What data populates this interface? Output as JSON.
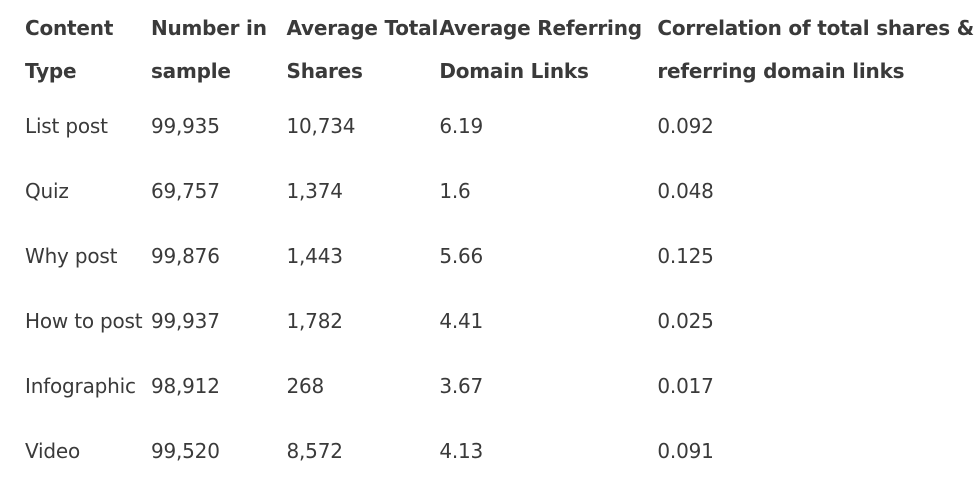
{
  "table": {
    "headers": [
      [
        "Content",
        "Type"
      ],
      [
        "Number in",
        "sample"
      ],
      [
        "Average Total",
        "Shares"
      ],
      [
        "Average Referring",
        "Domain Links"
      ],
      [
        "Correlation of total shares &",
        "referring domain links"
      ]
    ],
    "rows": [
      [
        "List post",
        "99,935",
        "10,734",
        "6.19",
        "0.092"
      ],
      [
        "Quiz",
        "69,757",
        "1,374",
        "1.6",
        "0.048"
      ],
      [
        "Why post",
        "99,876",
        "1,443",
        "5.66",
        "0.125"
      ],
      [
        "How to post",
        "99,937",
        "1,782",
        "4.41",
        "0.025"
      ],
      [
        "Infographic",
        "98,912",
        "268",
        "3.67",
        "0.017"
      ],
      [
        "Video",
        "99,520",
        "8,572",
        "4.13",
        "0.091"
      ]
    ]
  }
}
